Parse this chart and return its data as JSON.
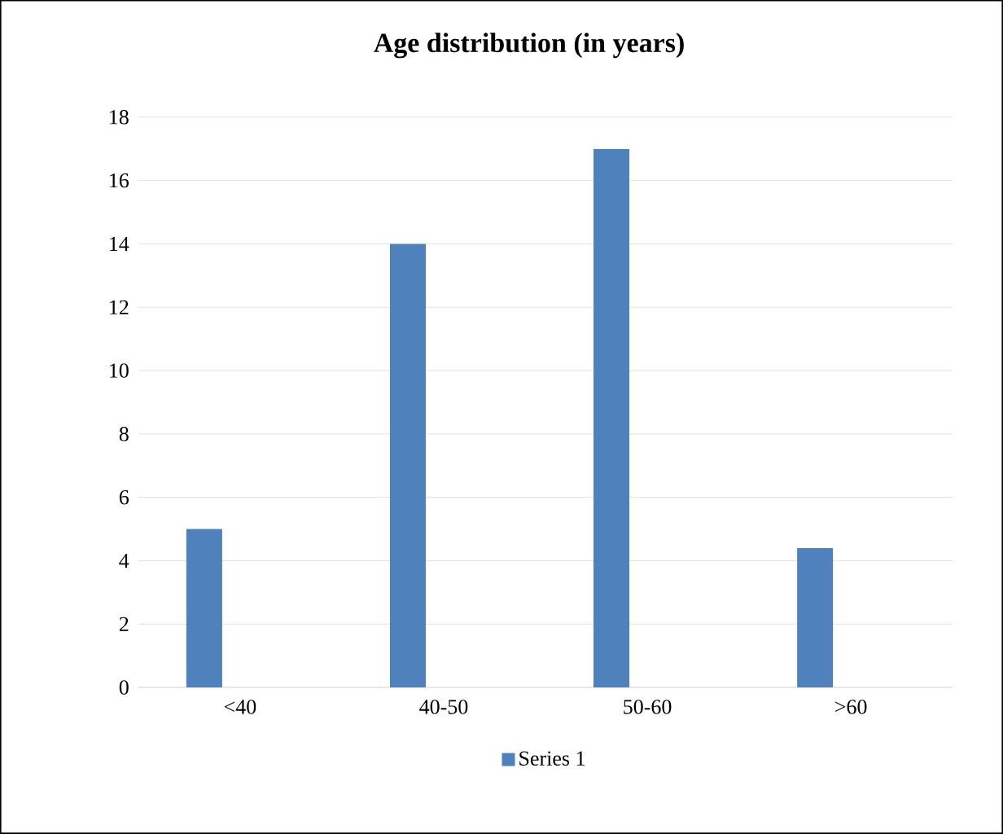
{
  "chart_data": {
    "type": "bar",
    "title": "Age distribution (in years)",
    "categories": [
      "<40",
      "40-50",
      "50-60",
      ">60"
    ],
    "series": [
      {
        "name": "Series 1",
        "color": "#4f81bd",
        "values": [
          5,
          14,
          17,
          4.4
        ]
      }
    ],
    "ylim": [
      0,
      18
    ],
    "yticks": [
      0,
      2,
      4,
      6,
      8,
      10,
      12,
      14,
      16,
      18
    ],
    "grid": "y",
    "legend": "bottom"
  }
}
